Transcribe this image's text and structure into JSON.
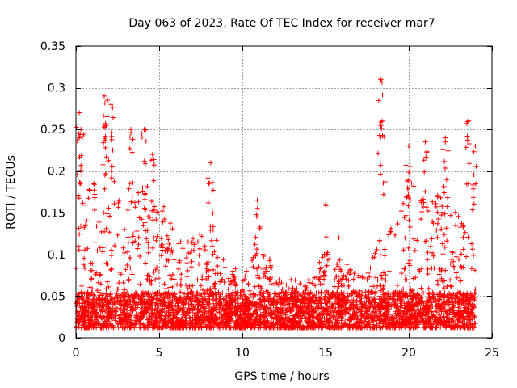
{
  "chart_data": {
    "type": "scatter",
    "title": "Day 063 of 2023, Rate Of TEC Index for receiver mar7",
    "xlabel": "GPS time / hours",
    "ylabel": "ROTI / TECUs",
    "xlim": [
      0,
      25
    ],
    "ylim": [
      0,
      0.35
    ],
    "x_ticks": [
      0,
      5,
      10,
      15,
      20,
      25
    ],
    "x_tick_labels": [
      "0",
      "5",
      "10",
      "15",
      "20",
      "25"
    ],
    "y_ticks": [
      0,
      0.05,
      0.1,
      0.15,
      0.2,
      0.25,
      0.3,
      0.35
    ],
    "y_tick_labels": [
      "0",
      "0.05",
      "0.1",
      "0.15",
      "0.2",
      "0.25",
      "0.3",
      "0.35"
    ],
    "grid": true,
    "marker": "plus",
    "color": "#ff0000",
    "envelope": {
      "description": "approximate per-hour typical upper envelope of ROTI values (TECU/min) across all satellites",
      "hours": [
        0,
        0.5,
        1,
        1.5,
        2,
        2.5,
        3,
        3.5,
        4,
        4.5,
        5,
        5.5,
        6,
        6.5,
        7,
        7.5,
        8,
        8.5,
        9,
        9.5,
        10,
        10.5,
        11,
        11.5,
        12,
        12.5,
        13,
        13.5,
        14,
        14.5,
        15,
        15.5,
        16,
        16.5,
        17,
        17.5,
        18,
        18.5,
        19,
        19.5,
        20,
        20.5,
        21,
        21.5,
        22,
        22.5,
        23,
        23.5,
        24
      ],
      "roti": [
        0.19,
        0.15,
        0.17,
        0.15,
        0.2,
        0.15,
        0.16,
        0.15,
        0.18,
        0.16,
        0.15,
        0.13,
        0.12,
        0.12,
        0.11,
        0.11,
        0.14,
        0.1,
        0.08,
        0.07,
        0.06,
        0.07,
        0.13,
        0.09,
        0.06,
        0.05,
        0.06,
        0.05,
        0.06,
        0.07,
        0.12,
        0.08,
        0.08,
        0.07,
        0.06,
        0.06,
        0.09,
        0.11,
        0.12,
        0.13,
        0.17,
        0.16,
        0.15,
        0.15,
        0.17,
        0.15,
        0.14,
        0.12,
        0.1
      ]
    },
    "peaks": {
      "description": "notable isolated high ROTI values visible as outliers",
      "x": [
        0.2,
        0.3,
        1.7,
        1.9,
        2.1,
        3.3,
        4.1,
        4.6,
        8.1,
        10.9,
        15.0,
        15.8,
        18.3,
        18.4,
        20.0,
        21.0,
        22.2,
        23.6,
        24.0
      ],
      "y": [
        0.27,
        0.25,
        0.29,
        0.285,
        0.28,
        0.25,
        0.25,
        0.22,
        0.21,
        0.165,
        0.16,
        0.12,
        0.31,
        0.26,
        0.23,
        0.235,
        0.24,
        0.26,
        0.23
      ]
    }
  }
}
